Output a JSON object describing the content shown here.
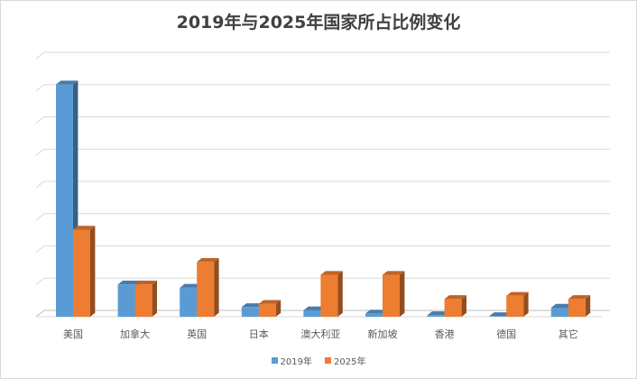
{
  "chart_data": {
    "type": "bar",
    "title": "2019年与2025年国家所占比例变化",
    "categories": [
      "美国",
      "加拿大",
      "英国",
      "日本",
      "澳大利亚",
      "新加坡",
      "香港",
      "德国",
      "其它"
    ],
    "series": [
      {
        "name": "2019年",
        "color": "#5b9bd5",
        "values": [
          72,
          10,
          9,
          3,
          2,
          1,
          0.5,
          0.2,
          2.8
        ]
      },
      {
        "name": "2025年",
        "color": "#ed7d31",
        "values": [
          27,
          10,
          17,
          4,
          13,
          13,
          5.5,
          6.5,
          5.5
        ]
      }
    ],
    "ylim": [
      0,
      80
    ],
    "gridlines": true,
    "y_tick_labels_shown": false,
    "legend_position": "bottom"
  }
}
